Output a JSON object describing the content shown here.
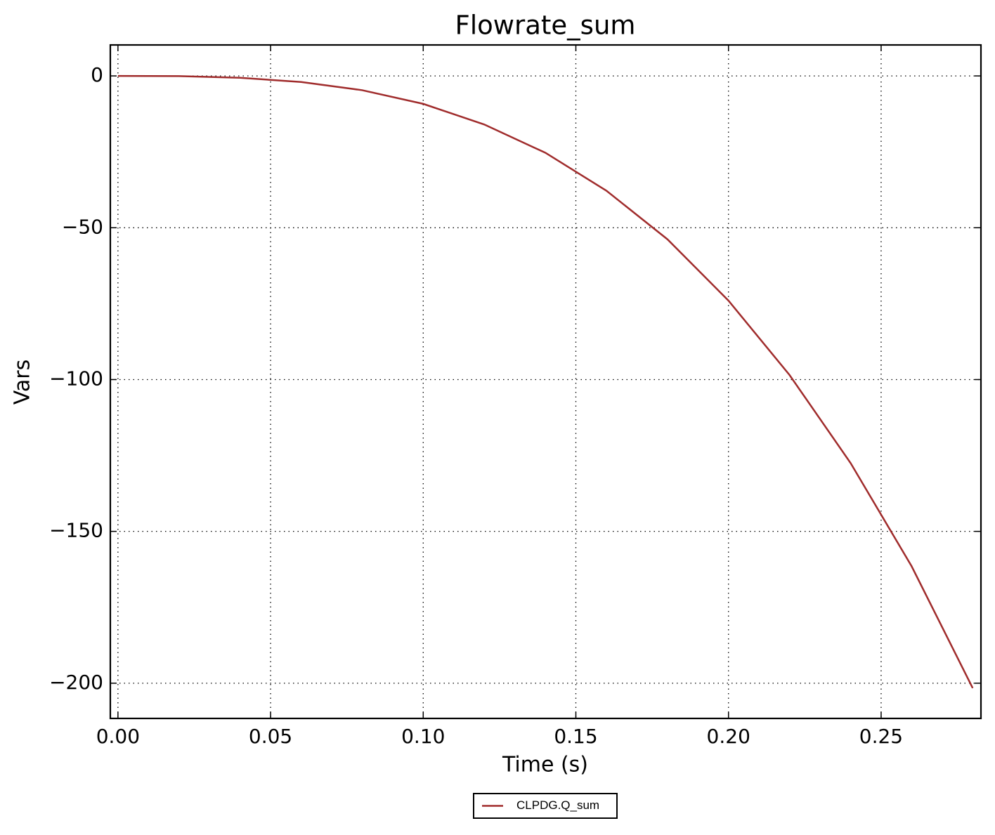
{
  "chart_data": {
    "type": "line",
    "title": "Flowrate_sum",
    "xlabel": "Time (s)",
    "ylabel": "Vars",
    "x": [
      0,
      0.02,
      0.04,
      0.06,
      0.08,
      0.1,
      0.12,
      0.14,
      0.16,
      0.18,
      0.2,
      0.22,
      0.24,
      0.26,
      0.28
    ],
    "series": [
      {
        "name": "CLPDG.Q_sum",
        "color": "#a02c2c",
        "values": [
          0,
          -0.07,
          -0.6,
          -2.0,
          -4.7,
          -9.2,
          -16,
          -25.3,
          -37.8,
          -53.8,
          -74,
          -98.5,
          -127.5,
          -161.5,
          -201.6
        ]
      }
    ],
    "xlim": [
      -0.0025,
      0.2827
    ],
    "ylim": [
      -211.6,
      10.2
    ],
    "xticks": [
      {
        "value": 0,
        "label": "0.00"
      },
      {
        "value": 0.05,
        "label": "0.05"
      },
      {
        "value": 0.1,
        "label": "0.10"
      },
      {
        "value": 0.15,
        "label": "0.15"
      },
      {
        "value": 0.2,
        "label": "0.20"
      },
      {
        "value": 0.25,
        "label": "0.25"
      }
    ],
    "yticks": [
      0,
      {
        "value": -50,
        "label": "−50"
      },
      {
        "value": -100,
        "label": "−100"
      },
      {
        "value": -150,
        "label": "−150"
      },
      {
        "value": -200,
        "label": "−200"
      }
    ],
    "grid": true,
    "legend": "bottom"
  }
}
